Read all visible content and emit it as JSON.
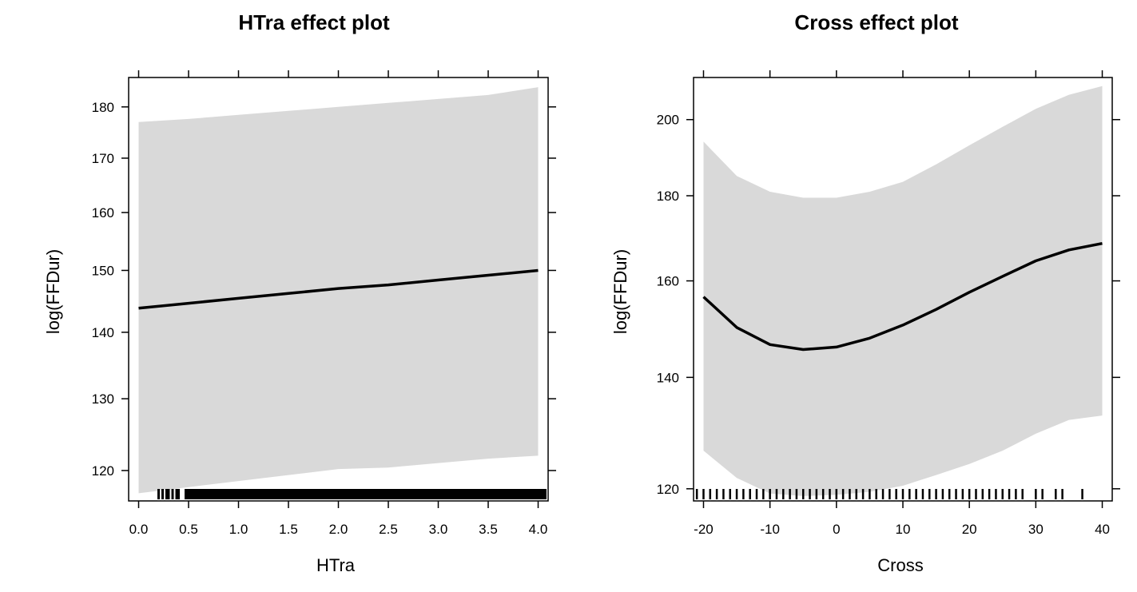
{
  "chart_data": [
    {
      "type": "line",
      "title": "HTra effect plot",
      "xlabel": "HTra",
      "ylabel": "log(FFDur)",
      "x_scale": "linear",
      "y_scale": "log",
      "xlim": [
        -0.1,
        4.1
      ],
      "ylim": [
        116,
        186
      ],
      "x_ticks": [
        "0.0",
        "0.5",
        "1.0",
        "1.5",
        "2.0",
        "2.5",
        "3.0",
        "3.5",
        "4.0"
      ],
      "y_ticks": [
        "120",
        "130",
        "140",
        "150",
        "160",
        "170",
        "180"
      ],
      "series": [
        {
          "x": [
            0.0,
            0.5,
            1.0,
            1.5,
            2.0,
            2.5,
            3.0,
            3.5,
            4.0
          ],
          "y": [
            143.8,
            144.6,
            145.4,
            146.2,
            147.0,
            147.6,
            148.4,
            149.2,
            150.0
          ],
          "lower": [
            117.0,
            117.8,
            118.6,
            119.4,
            120.2,
            120.4,
            121.0,
            121.6,
            122.0
          ],
          "upper": [
            177.0,
            177.6,
            178.4,
            179.2,
            180.0,
            180.8,
            181.6,
            182.4,
            184.0
          ]
        }
      ],
      "rug": {
        "range": [
          0.1,
          4.1
        ],
        "sparse": [
          0.2,
          0.24,
          0.28,
          0.3,
          0.34,
          0.38,
          0.4
        ]
      },
      "grid": false,
      "band_color": "#d9d9d9",
      "line_color": "#000000"
    },
    {
      "type": "line",
      "title": "Cross effect plot",
      "xlabel": "Cross",
      "ylabel": "log(FFDur)",
      "x_scale": "linear",
      "y_scale": "log",
      "xlim": [
        -21.5,
        41.5
      ],
      "ylim": [
        118,
        212
      ],
      "x_ticks": [
        "-20",
        "-10",
        "0",
        "10",
        "20",
        "30",
        "40"
      ],
      "y_ticks": [
        "120",
        "140",
        "160",
        "180",
        "200"
      ],
      "series": [
        {
          "x": [
            -20,
            -15,
            -10,
            -5,
            0,
            5,
            10,
            15,
            20,
            25,
            30,
            35,
            40
          ],
          "y": [
            156.5,
            150.0,
            146.5,
            145.5,
            146.0,
            147.8,
            150.5,
            153.8,
            157.5,
            161.0,
            164.5,
            167.0,
            168.5
          ],
          "lower": [
            126.5,
            121.8,
            119.2,
            118.8,
            119.0,
            119.5,
            120.5,
            122.3,
            124.2,
            126.5,
            129.5,
            132.0,
            132.8
          ],
          "upper": [
            194.0,
            185.0,
            181.0,
            179.5,
            179.5,
            181.0,
            183.5,
            188.0,
            193.0,
            198.0,
            203.0,
            207.0,
            209.5
          ]
        }
      ],
      "rug": {
        "ticks": [
          -21,
          -20,
          -19,
          -18,
          -17,
          -16,
          -15,
          -14,
          -13,
          -12,
          -11,
          -10,
          -9,
          -8,
          -7,
          -6,
          -5,
          -4,
          -3,
          -2,
          -1,
          0,
          1,
          2,
          3,
          4,
          5,
          6,
          7,
          8,
          9,
          10,
          11,
          12,
          13,
          14,
          15,
          16,
          17,
          18,
          19,
          20,
          21,
          22,
          23,
          24,
          25,
          26,
          27,
          28,
          30,
          31,
          33,
          34,
          37
        ]
      },
      "grid": false,
      "band_color": "#d9d9d9",
      "line_color": "#000000"
    }
  ]
}
